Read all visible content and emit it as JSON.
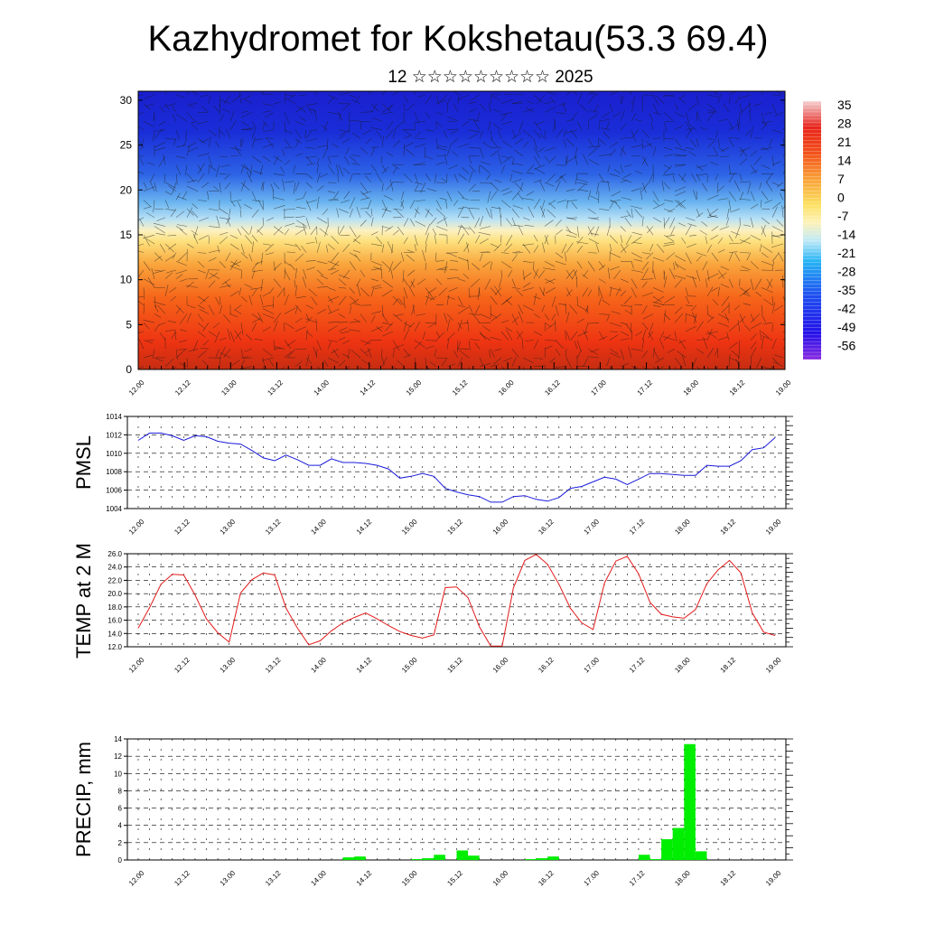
{
  "page": {
    "title": "Kazhydromet for Kokshetau(53.3 69.4)",
    "subtitle": "12 ☆☆☆☆☆☆☆☆☆ 2025"
  },
  "chart_data": [
    {
      "id": "cross-section",
      "type": "heatmap",
      "title": "",
      "x_tick_labels": [
        "12.00",
        "12.12",
        "13.00",
        "13.12",
        "14.00",
        "14.12",
        "15.00",
        "15.12",
        "16.00",
        "16.12",
        "17.00",
        "17.12",
        "18.00",
        "18.12",
        "19.00"
      ],
      "ylim": [
        0,
        31
      ],
      "y_ticks": [
        0,
        5,
        10,
        15,
        20,
        25,
        30
      ],
      "colorbar_ticks": [
        "35",
        "28",
        "21",
        "14",
        "7",
        "0",
        "-7",
        "-14",
        "-21",
        "-28",
        "-35",
        "-42",
        "-49",
        "-56"
      ],
      "overlay": "wind-barbs"
    },
    {
      "id": "pmsl",
      "type": "line",
      "ylabel": "PMSL",
      "color": "#1a1adb",
      "ylim": [
        1004,
        1014
      ],
      "y_ticks": [
        "1004",
        "1006",
        "1008",
        "1010",
        "1012",
        "1014"
      ],
      "x_tick_labels": [
        "12.00",
        "12.12",
        "13.00",
        "13.12",
        "14.00",
        "14.12",
        "15.00",
        "15.12",
        "16.00",
        "16.12",
        "17.00",
        "17.12",
        "18.00",
        "18.12",
        "19.00"
      ],
      "x": [
        0,
        1,
        2,
        3,
        4,
        5,
        6,
        7,
        8,
        9,
        10,
        11,
        12,
        13,
        14,
        15,
        16,
        17,
        18,
        19,
        20,
        21,
        22,
        23,
        24,
        25,
        26,
        27,
        28,
        29,
        30,
        31,
        32,
        33,
        34,
        35,
        36,
        37,
        38,
        39,
        40,
        41,
        42,
        43,
        44,
        45,
        46,
        47,
        48,
        49,
        50,
        51,
        52,
        53,
        54,
        55,
        56
      ],
      "values": [
        1011.4,
        1012.2,
        1012.2,
        1011.9,
        1011.4,
        1011.9,
        1011.8,
        1011.3,
        1011.1,
        1011.0,
        1010.3,
        1009.5,
        1009.2,
        1009.8,
        1009.3,
        1008.7,
        1008.7,
        1009.4,
        1009.0,
        1009.0,
        1008.9,
        1008.7,
        1008.3,
        1007.3,
        1007.5,
        1007.8,
        1007.5,
        1006.2,
        1005.8,
        1005.5,
        1005.3,
        1004.7,
        1004.7,
        1005.3,
        1005.4,
        1005.0,
        1004.8,
        1005.2,
        1006.2,
        1006.4,
        1006.9,
        1007.4,
        1007.2,
        1006.6,
        1007.2,
        1007.8,
        1007.8,
        1007.7,
        1007.6,
        1007.6,
        1008.7,
        1008.6,
        1008.6,
        1009.2,
        1010.4,
        1010.6,
        1011.7
      ]
    },
    {
      "id": "temp2m",
      "type": "line",
      "ylabel": "TEMP at 2 M",
      "color": "#e31a1a",
      "ylim": [
        12,
        26
      ],
      "y_ticks": [
        "12.0",
        "14.0",
        "16.0",
        "18.0",
        "20.0",
        "22.0",
        "24.0",
        "26.0"
      ],
      "x_tick_labels": [
        "12.00",
        "12.12",
        "13.00",
        "13.12",
        "14.00",
        "14.12",
        "15.00",
        "15.12",
        "16.00",
        "16.12",
        "17.00",
        "17.12",
        "18.00",
        "18.12",
        "19.00"
      ],
      "x": [
        0,
        1,
        2,
        3,
        4,
        5,
        6,
        7,
        8,
        9,
        10,
        11,
        12,
        13,
        14,
        15,
        16,
        17,
        18,
        19,
        20,
        21,
        22,
        23,
        24,
        25,
        26,
        27,
        28,
        29,
        30,
        31,
        32,
        33,
        34,
        35,
        36,
        37,
        38,
        39,
        40,
        41,
        42,
        43,
        44,
        45,
        46,
        47,
        48,
        49,
        50,
        51,
        52,
        53,
        54,
        55,
        56
      ],
      "values": [
        14.8,
        17.9,
        21.4,
        22.9,
        22.8,
        19.8,
        16.2,
        14.1,
        12.7,
        20.1,
        22.1,
        23.1,
        22.8,
        17.8,
        14.8,
        12.3,
        12.9,
        14.4,
        15.6,
        16.4,
        17.1,
        16.2,
        15.2,
        14.3,
        13.7,
        13.3,
        13.8,
        20.9,
        21.0,
        19.4,
        15.0,
        12.1,
        12.1,
        20.9,
        25.0,
        25.9,
        24.4,
        21.4,
        17.8,
        15.6,
        14.6,
        21.6,
        24.9,
        25.6,
        23.0,
        18.7,
        16.9,
        16.5,
        16.3,
        17.6,
        21.5,
        23.6,
        25.0,
        23.1,
        17.1,
        14.2,
        13.7
      ]
    },
    {
      "id": "precip",
      "type": "bar",
      "ylabel": "PRECIP, mm",
      "color": "#00ee00",
      "ylim": [
        0,
        14
      ],
      "y_ticks": [
        "0",
        "2",
        "4",
        "6",
        "8",
        "10",
        "12",
        "14"
      ],
      "x_tick_labels": [
        "12.00",
        "12.12",
        "13.00",
        "13.12",
        "14.00",
        "14.12",
        "15.00",
        "15.12",
        "16.00",
        "16.12",
        "17.00",
        "17.12",
        "18.00",
        "18.12",
        "19.00"
      ],
      "bars": [
        {
          "x": 18.5,
          "value": 0.3
        },
        {
          "x": 19.5,
          "value": 0.4
        },
        {
          "x": 24.5,
          "value": 0.1
        },
        {
          "x": 25.5,
          "value": 0.2
        },
        {
          "x": 26.5,
          "value": 0.6
        },
        {
          "x": 28.5,
          "value": 1.1
        },
        {
          "x": 29.5,
          "value": 0.5
        },
        {
          "x": 34.5,
          "value": 0.1
        },
        {
          "x": 35.5,
          "value": 0.2
        },
        {
          "x": 36.5,
          "value": 0.4
        },
        {
          "x": 44.5,
          "value": 0.6
        },
        {
          "x": 45.5,
          "value": 0.1
        },
        {
          "x": 46.5,
          "value": 2.4
        },
        {
          "x": 47.5,
          "value": 3.7
        },
        {
          "x": 48.5,
          "value": 13.4
        },
        {
          "x": 49.5,
          "value": 1.0
        }
      ]
    }
  ]
}
